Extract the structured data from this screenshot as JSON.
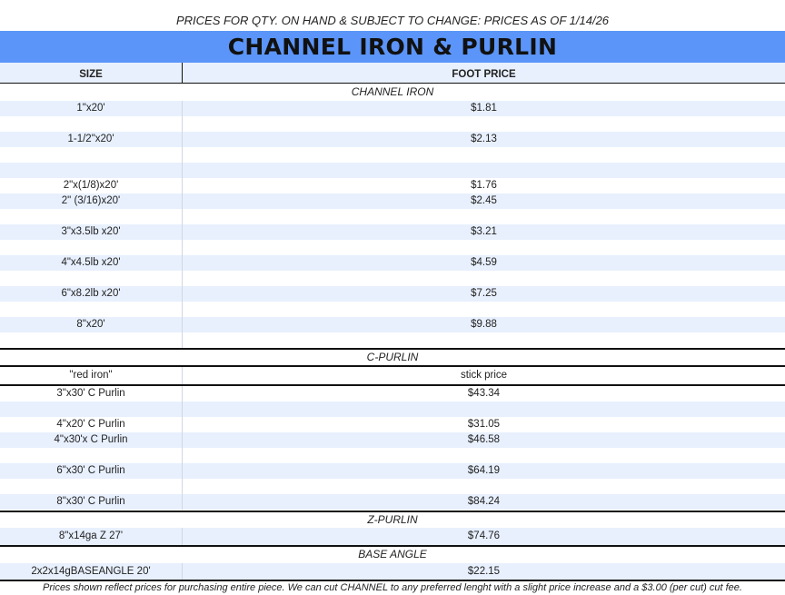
{
  "header_note": "PRICES FOR QTY. ON HAND & SUBJECT TO CHANGE: PRICES AS OF 1/14/26",
  "title": "CHANNEL IRON & PURLIN",
  "columns": {
    "size": "SIZE",
    "price": "FOOT PRICE"
  },
  "channel_iron": {
    "label": "CHANNEL IRON",
    "rows": [
      {
        "size": "1\"x20'",
        "price": "$1.81"
      },
      {
        "size": "",
        "price": ""
      },
      {
        "size": "1-1/2\"x20'",
        "price": "$2.13"
      },
      {
        "size": "",
        "price": ""
      },
      {
        "size": "",
        "price": ""
      },
      {
        "size": "2\"x(1/8)x20'",
        "price": "$1.76"
      },
      {
        "size": "2\" (3/16)x20'",
        "price": "$2.45"
      },
      {
        "size": "",
        "price": ""
      },
      {
        "size": "3\"x3.5lb x20'",
        "price": "$3.21"
      },
      {
        "size": "",
        "price": ""
      },
      {
        "size": "4\"x4.5lb x20'",
        "price": "$4.59"
      },
      {
        "size": "",
        "price": ""
      },
      {
        "size": "6\"x8.2lb x20'",
        "price": "$7.25"
      },
      {
        "size": "",
        "price": ""
      },
      {
        "size": "8\"x20'",
        "price": "$9.88"
      },
      {
        "size": "",
        "price": ""
      }
    ]
  },
  "c_purlin": {
    "label": "C-PURLIN",
    "subheader": {
      "size": "\"red iron\"",
      "price": "stick price"
    },
    "rows": [
      {
        "size": "3\"x30' C Purlin",
        "price": "$43.34"
      },
      {
        "size": "",
        "price": ""
      },
      {
        "size": "4\"x20' C Purlin",
        "price": "$31.05"
      },
      {
        "size": "4\"x30'x C Purlin",
        "price": "$46.58"
      },
      {
        "size": "",
        "price": ""
      },
      {
        "size": "6\"x30' C Purlin",
        "price": "$64.19"
      },
      {
        "size": "",
        "price": ""
      },
      {
        "size": "8\"x30' C Purlin",
        "price": "$84.24"
      }
    ]
  },
  "z_purlin": {
    "label": "Z-PURLIN",
    "rows": [
      {
        "size": "8\"x14ga Z 27'",
        "price": "$74.76"
      }
    ]
  },
  "base_angle": {
    "label": "BASE ANGLE",
    "rows": [
      {
        "size": "2x2x14gBASEANGLE 20'",
        "price": "$22.15"
      }
    ]
  },
  "footer_note": "Prices shown reflect prices for purchasing entire piece. We can cut CHANNEL to any preferred lenght with a slight price increase and a $3.00 (per cut) cut fee."
}
